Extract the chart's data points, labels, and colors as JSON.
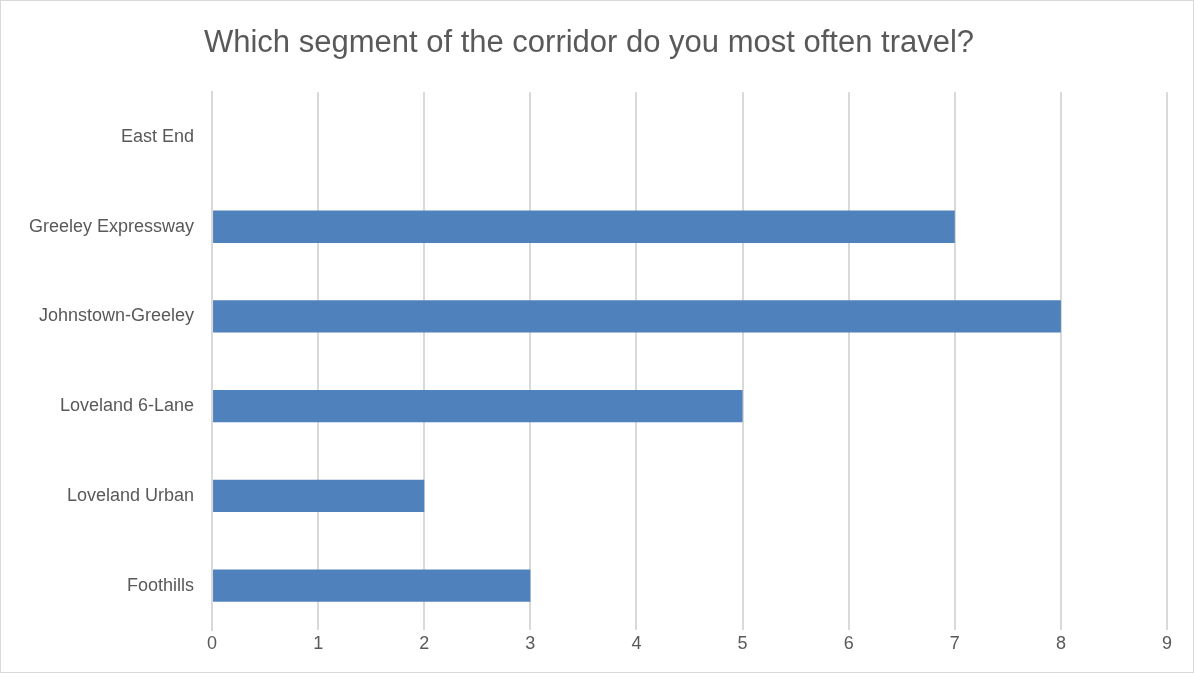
{
  "chart_data": {
    "type": "bar",
    "orientation": "horizontal",
    "title": "Which segment of the corridor do you most often travel?",
    "categories": [
      "East End",
      "Greeley Expressway",
      "Johnstown-Greeley",
      "Loveland 6-Lane",
      "Loveland Urban",
      "Foothills"
    ],
    "values": [
      0,
      7,
      8,
      5,
      2,
      3
    ],
    "color": "#4f81bd",
    "xlim": [
      0,
      9
    ],
    "xticks": [
      0,
      1,
      2,
      3,
      4,
      5,
      6,
      7,
      8,
      9
    ],
    "grid": "x",
    "legend": false
  }
}
